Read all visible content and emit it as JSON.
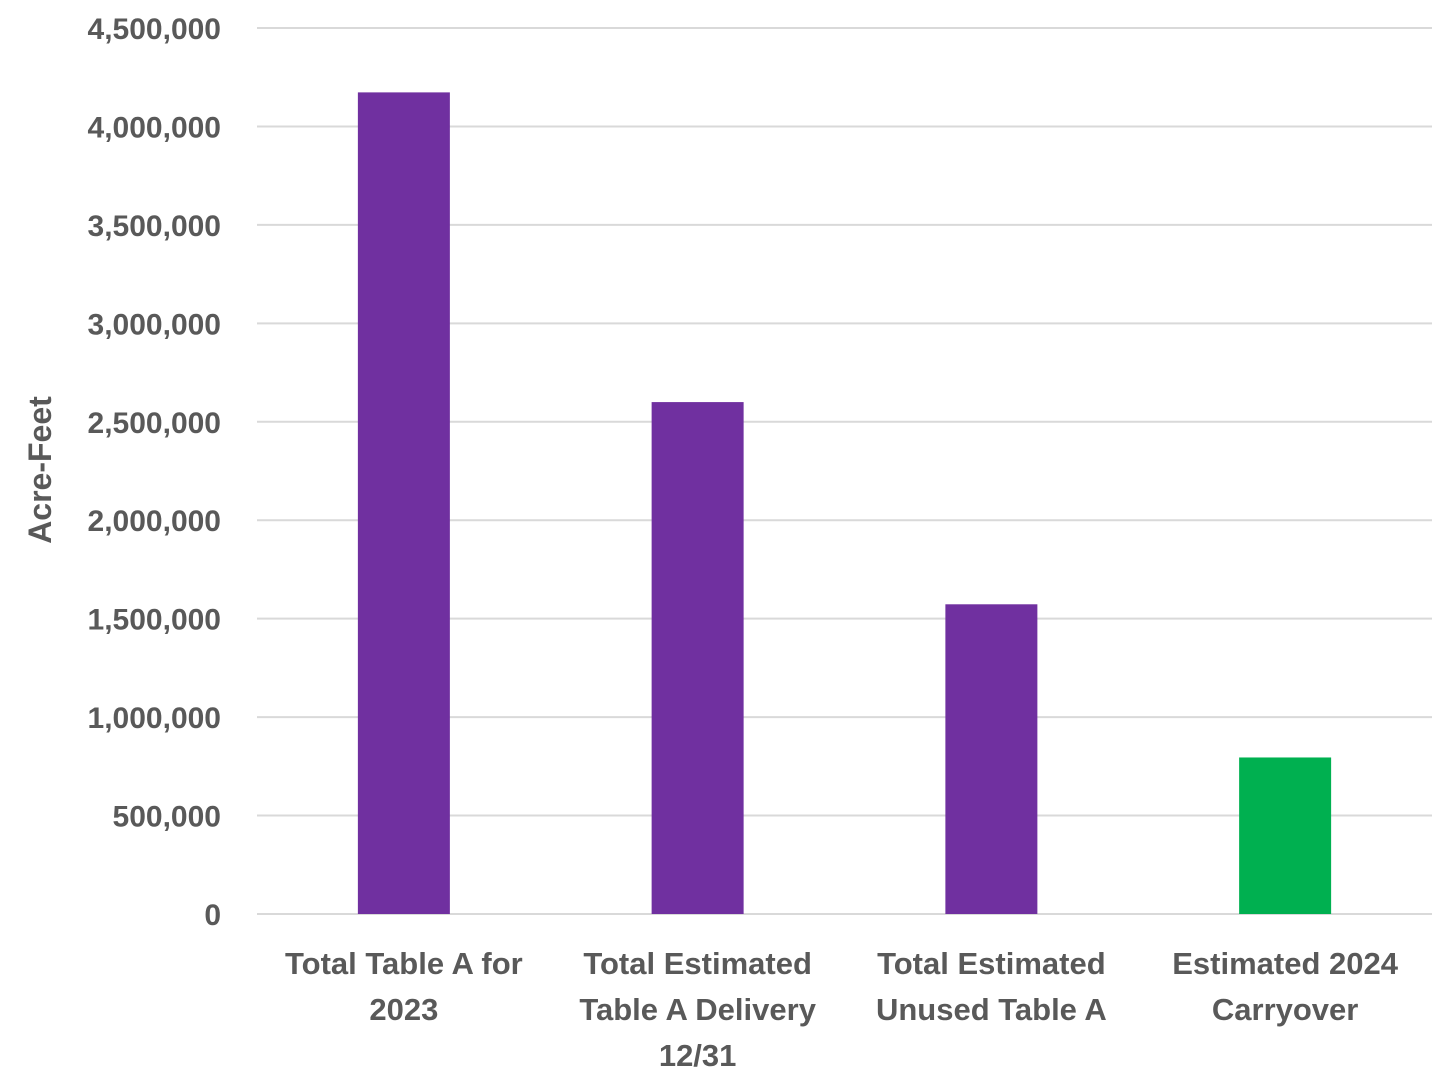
{
  "chart_data": {
    "type": "bar",
    "title": "",
    "xlabel": "",
    "ylabel": "Acre-Feet",
    "ylim": [
      0,
      4500000
    ],
    "ytick_step": 500000,
    "yticks": [
      "0",
      "500,000",
      "1,000,000",
      "1,500,000",
      "2,000,000",
      "2,500,000",
      "3,000,000",
      "3,500,000",
      "4,000,000",
      "4,500,000"
    ],
    "categories": [
      [
        "Total Table A for",
        "2023"
      ],
      [
        "Total Estimated",
        "Table A Delivery",
        "12/31"
      ],
      [
        "Total Estimated",
        "Unused Table A"
      ],
      [
        "Estimated 2024",
        "Carryover"
      ]
    ],
    "values": [
      4173000,
      2600000,
      1573000,
      795000
    ],
    "colors": [
      "#7030a0",
      "#7030a0",
      "#7030a0",
      "#00b050"
    ],
    "grid": true,
    "legend": "none"
  }
}
